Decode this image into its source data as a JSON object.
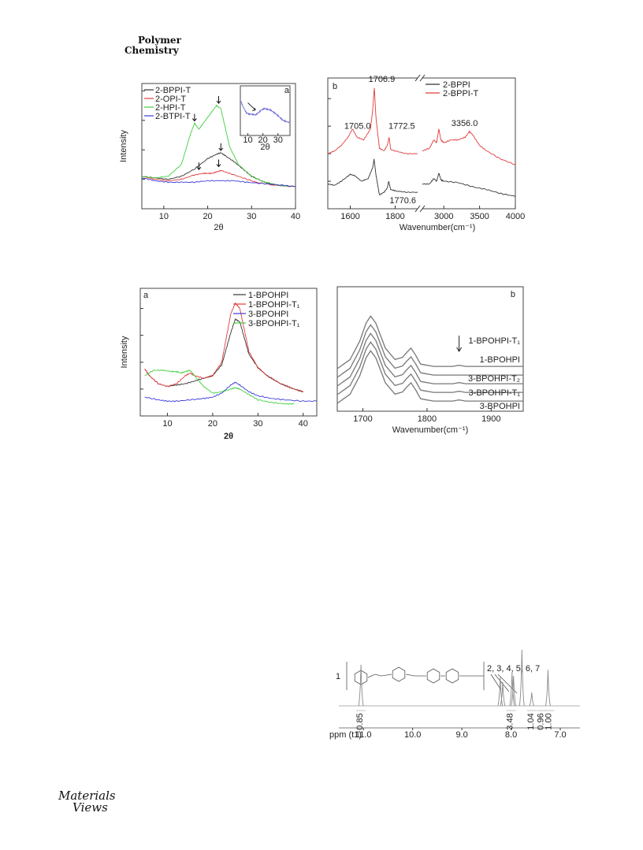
{
  "journal": {
    "line1": "Polymer",
    "line2": "Chemistry"
  },
  "logo": {
    "line1": "Materials",
    "line2": "Views"
  },
  "chart_data": [
    {
      "type": "line",
      "panel": "a",
      "xlabel": "2θ",
      "ylabel": "Intensity",
      "xlim": [
        5,
        40
      ],
      "xticks": [
        10,
        20,
        30,
        40
      ],
      "legend": "top-left",
      "series": [
        {
          "name": "2-BPPI-T",
          "color": "#333333",
          "x": [
            5,
            8,
            11,
            14,
            17,
            20,
            22,
            23,
            24,
            26,
            28,
            30,
            33,
            36,
            40
          ],
          "y": [
            22,
            21,
            20,
            22,
            27,
            34,
            37,
            38,
            36,
            32,
            27,
            22,
            18,
            16,
            15
          ]
        },
        {
          "name": "2-OPI-T",
          "color": "#e23b3b",
          "x": [
            5,
            8,
            11,
            14,
            17,
            19,
            20,
            21,
            22,
            23,
            25,
            28,
            31,
            35,
            40
          ],
          "y": [
            22,
            20,
            19,
            20,
            23,
            24,
            24,
            24,
            25,
            26,
            24,
            21,
            18,
            16,
            15
          ]
        },
        {
          "name": "2-HPI-T",
          "color": "#3fcf3f",
          "x": [
            5,
            8,
            11,
            14,
            16,
            17,
            18,
            19,
            20,
            21,
            22,
            23,
            24,
            25,
            27,
            30,
            33,
            36,
            40
          ],
          "y": [
            22,
            21,
            22,
            30,
            50,
            58,
            54,
            58,
            62,
            66,
            70,
            68,
            55,
            42,
            30,
            22,
            18,
            16,
            15
          ]
        },
        {
          "name": "2-BTPI-T",
          "color": "#3b3bd9",
          "x": [
            5,
            8,
            11,
            14,
            17,
            20,
            23,
            26,
            29,
            33,
            37,
            40
          ],
          "y": [
            21,
            19,
            18,
            18,
            18,
            19,
            19,
            19,
            18,
            17,
            16,
            15
          ]
        }
      ],
      "inset": {
        "xlabel": "2θ",
        "xticks": [
          10,
          20,
          30
        ],
        "xlim": [
          5,
          38
        ],
        "series": [
          {
            "name": "",
            "color": "#6a6ad9",
            "x": [
              5,
              7,
              9,
              11,
              13,
              15,
              17,
              19,
              21,
              23,
              25,
              27,
              29,
              31,
              33,
              35,
              38
            ],
            "y": [
              70,
              60,
              52,
              50,
              50,
              49,
              52,
              56,
              58,
              57,
              56,
              53,
              50,
              46,
              42,
              40,
              38
            ]
          }
        ]
      }
    },
    {
      "type": "line",
      "panel": "b",
      "xlabel": "Wavenumber(cm⁻¹)",
      "xticks": [
        1600,
        1800,
        3000,
        3500,
        4000
      ],
      "legend": "top-right",
      "annotations": [
        {
          "text": "1706.9",
          "color": "#e23b3b"
        },
        {
          "text": "1705.0",
          "color": "#222222"
        },
        {
          "text": "1772.5",
          "color": "#e23b3b"
        },
        {
          "text": "1770.6",
          "color": "#222222"
        },
        {
          "text": "3356.0",
          "color": "#e23b3b"
        }
      ],
      "series": [
        {
          "name": "2-BPPI",
          "color": "#333333",
          "left": {
            "x": [
              1500,
              1530,
              1560,
              1600,
              1620,
              1650,
              1680,
              1700,
              1706,
              1715,
              1730,
              1750,
              1765,
              1771,
              1780,
              1800,
              1850,
              1900
            ],
            "y": [
              38,
              37,
              40,
              45,
              44,
              40,
              42,
              50,
              56,
              44,
              30,
              32,
              35,
              40,
              34,
              33,
              32,
              32
            ]
          },
          "right": {
            "x": [
              2700,
              2800,
              2860,
              2900,
              2930,
              2960,
              3000,
              3200,
              3400,
              3600,
              3800,
              4000
            ],
            "y": [
              38,
              38,
              42,
              40,
              46,
              41,
              40,
              39,
              36,
              34,
              31,
              29
            ]
          }
        },
        {
          "name": "2-BPPI-T",
          "color": "#e23b3b",
          "left": {
            "x": [
              1500,
              1530,
              1560,
              1590,
              1610,
              1630,
              1660,
              1690,
              1700,
              1707,
              1715,
              1730,
              1750,
              1765,
              1773,
              1780,
              1800,
              1850,
              1900
            ],
            "y": [
              60,
              62,
              66,
              72,
              78,
              72,
              70,
              78,
              92,
              108,
              85,
              64,
              62,
              66,
              72,
              63,
              62,
              60,
              60
            ]
          },
          "right": {
            "x": [
              2700,
              2800,
              2860,
              2900,
              2930,
              2960,
              3000,
              3100,
              3200,
              3300,
              3356,
              3400,
              3500,
              3600,
              3800,
              4000
            ],
            "y": [
              62,
              64,
              70,
              68,
              78,
              70,
              68,
              70,
              70,
              72,
              76,
              74,
              66,
              62,
              56,
              52
            ]
          }
        }
      ]
    },
    {
      "type": "line",
      "panel": "a",
      "xlabel": "2θ",
      "ylabel": "Intensity",
      "xlim": [
        4,
        43
      ],
      "xticks": [
        10,
        20,
        30,
        40
      ],
      "legend": "top-right",
      "series": [
        {
          "name": "1-BPOHPI",
          "color": "#333333",
          "x": [
            5,
            6,
            8,
            10,
            12,
            14,
            16,
            18,
            20,
            22,
            23,
            24,
            25,
            26,
            27,
            28,
            30,
            32,
            35,
            38,
            40
          ],
          "y": [
            35,
            30,
            24,
            22,
            23,
            24,
            26,
            28,
            30,
            38,
            50,
            62,
            72,
            70,
            58,
            46,
            36,
            30,
            24,
            20,
            18
          ]
        },
        {
          "name": "1-BPOHPI-T₁",
          "color": "#e23b3b",
          "x": [
            5,
            6,
            8,
            10,
            12,
            14,
            15,
            16,
            18,
            20,
            22,
            23,
            24,
            25,
            26,
            27,
            28,
            30,
            32,
            35,
            38,
            40
          ],
          "y": [
            35,
            30,
            24,
            22,
            24,
            30,
            32,
            30,
            28,
            30,
            40,
            58,
            76,
            84,
            80,
            64,
            48,
            36,
            30,
            24,
            20,
            18
          ]
        },
        {
          "name": "3-BPOHPI",
          "color": "#3b3bd9",
          "x": [
            5,
            8,
            10,
            12,
            15,
            18,
            20,
            22,
            24,
            25,
            26,
            28,
            30,
            33,
            36,
            40,
            43
          ],
          "y": [
            14,
            12,
            11,
            11,
            12,
            13,
            14,
            17,
            23,
            25,
            23,
            18,
            15,
            13,
            12,
            11,
            11
          ]
        },
        {
          "name": "3-BPOHPI-T₁",
          "color": "#3fcf3f",
          "x": [
            5,
            7,
            9,
            11,
            12,
            13,
            14,
            15,
            16,
            18,
            20,
            22,
            24,
            25,
            26,
            28,
            30,
            33,
            36,
            38
          ],
          "y": [
            30,
            34,
            34,
            33,
            33,
            32,
            33,
            34,
            30,
            22,
            17,
            18,
            20,
            21,
            20,
            16,
            12,
            10,
            9,
            9
          ]
        }
      ]
    },
    {
      "type": "line",
      "panel": "b",
      "xlabel": "Wavenumber(cm⁻¹)",
      "xlim": [
        1660,
        1950
      ],
      "xticks": [
        1700,
        1800,
        1900
      ],
      "labels": [
        "1-BPOHPI-T₁",
        "1-BPOHPI",
        "3-BPOHPI-T₂",
        "3-BPOHPI-T₁",
        "3-BPOHPI"
      ],
      "series": [
        {
          "name": "1-BPOHPI-T₁",
          "color": "#777777",
          "offset": 40,
          "x": [
            1660,
            1680,
            1695,
            1705,
            1712,
            1720,
            1735,
            1750,
            1762,
            1768,
            1775,
            1782,
            1790,
            1810,
            1840,
            1850,
            1860,
            1900,
            1950
          ],
          "y": [
            0,
            8,
            24,
            40,
            46,
            40,
            18,
            8,
            10,
            14,
            18,
            12,
            4,
            2,
            2,
            3,
            2,
            2,
            2
          ]
        },
        {
          "name": "1-BPOHPI",
          "color": "#777777",
          "offset": 30,
          "x": [
            1660,
            1680,
            1695,
            1705,
            1712,
            1720,
            1735,
            1750,
            1762,
            1768,
            1775,
            1782,
            1790,
            1810,
            1840,
            1850,
            1860,
            1900,
            1950
          ],
          "y": [
            0,
            8,
            24,
            40,
            46,
            40,
            18,
            8,
            10,
            14,
            18,
            12,
            4,
            2,
            2,
            2,
            2,
            2,
            2
          ]
        },
        {
          "name": "3-BPOHPI-T₂",
          "color": "#777777",
          "offset": 20,
          "x": [
            1660,
            1680,
            1695,
            1705,
            1712,
            1720,
            1735,
            1750,
            1762,
            1768,
            1775,
            1782,
            1790,
            1810,
            1840,
            1850,
            1860,
            1900,
            1950
          ],
          "y": [
            0,
            8,
            24,
            40,
            46,
            40,
            18,
            8,
            10,
            14,
            18,
            12,
            4,
            2,
            2,
            3,
            2,
            2,
            2
          ]
        },
        {
          "name": "3-BPOHPI-T₁",
          "color": "#777777",
          "offset": 10,
          "x": [
            1660,
            1680,
            1695,
            1705,
            1712,
            1720,
            1735,
            1750,
            1762,
            1768,
            1775,
            1782,
            1790,
            1810,
            1840,
            1850,
            1860,
            1900,
            1950
          ],
          "y": [
            0,
            8,
            24,
            40,
            46,
            40,
            18,
            8,
            10,
            14,
            18,
            12,
            4,
            2,
            2,
            3,
            2,
            2,
            2
          ]
        },
        {
          "name": "3-BPOHPI",
          "color": "#777777",
          "offset": 0,
          "x": [
            1660,
            1680,
            1695,
            1705,
            1712,
            1720,
            1735,
            1750,
            1762,
            1768,
            1775,
            1782,
            1790,
            1810,
            1840,
            1850,
            1860,
            1900,
            1950
          ],
          "y": [
            0,
            8,
            24,
            40,
            46,
            40,
            18,
            8,
            10,
            14,
            18,
            12,
            4,
            2,
            2,
            3,
            2,
            2,
            2
          ]
        }
      ]
    },
    {
      "type": "line",
      "panel": "nmr",
      "xlabel": "ppm (t1)",
      "xlim": [
        11.5,
        6.6
      ],
      "xticks": [
        11.0,
        10.0,
        9.0,
        8.0,
        7.0
      ],
      "peak_labels": [
        "1",
        "2, 3, 4, 5, 6, 7"
      ],
      "integrals": [
        "0.85",
        "3.48",
        "1.04",
        "0.96",
        "1.00"
      ],
      "peaks": [
        {
          "ppm": 11.05,
          "height": 55
        },
        {
          "ppm": 8.22,
          "height": 38
        },
        {
          "ppm": 8.17,
          "height": 32
        },
        {
          "ppm": 7.98,
          "height": 45
        },
        {
          "ppm": 7.95,
          "height": 40
        },
        {
          "ppm": 7.78,
          "height": 75
        },
        {
          "ppm": 7.58,
          "height": 18
        },
        {
          "ppm": 7.25,
          "height": 48
        }
      ]
    }
  ]
}
